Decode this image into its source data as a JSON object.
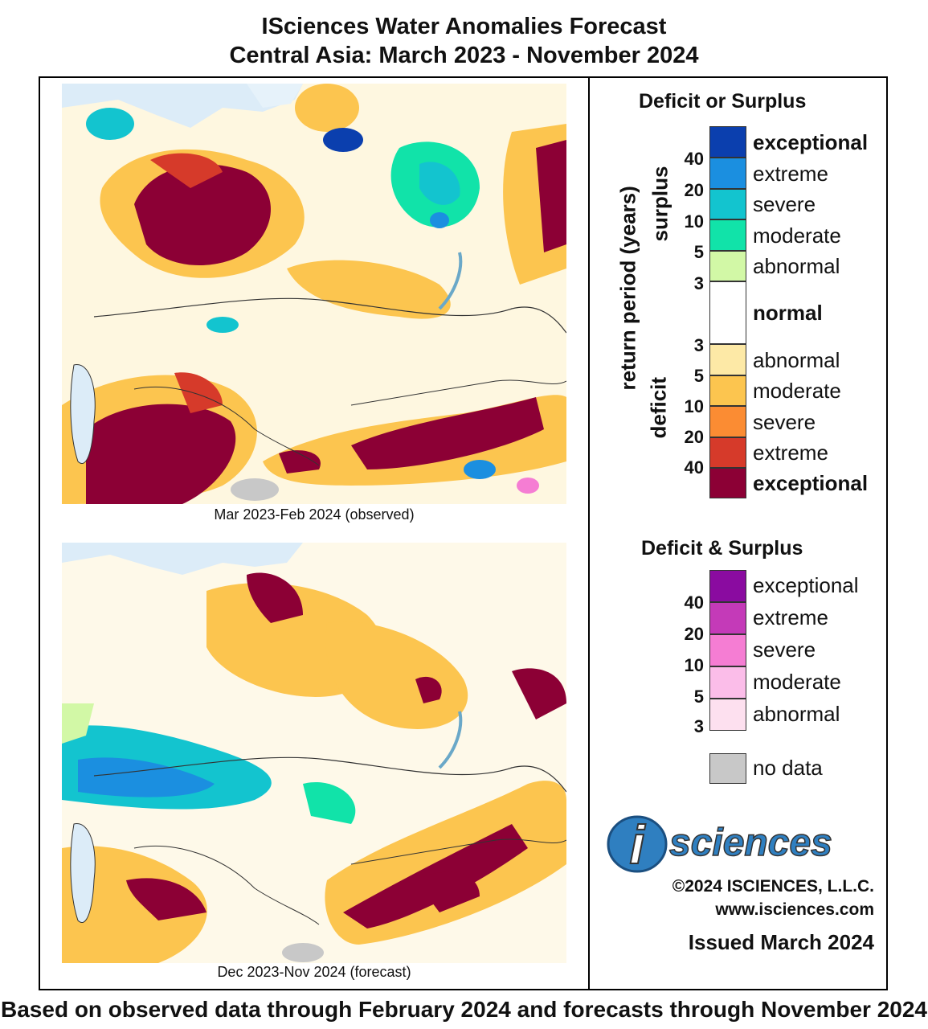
{
  "header": {
    "title_line1": "ISciences Water Anomalies Forecast",
    "title_line2": "Central Asia: March 2023 - November 2024"
  },
  "maps": [
    {
      "caption": "Mar 2023-Feb 2024 (observed)"
    },
    {
      "caption": "Dec 2023-Nov 2024 (forecast)"
    }
  ],
  "legend": {
    "deficit_surplus_title": "Deficit or Surplus",
    "axis_label": "return period (years)",
    "surplus_label": "surplus",
    "deficit_label": "deficit",
    "surplus_numbers": [
      "40",
      "20",
      "10",
      "5",
      "3"
    ],
    "deficit_numbers": [
      "3",
      "5",
      "10",
      "20",
      "40"
    ],
    "classes": [
      {
        "label": "exceptional",
        "color": "#0b3fae"
      },
      {
        "label": "extreme",
        "color": "#1b8fe0"
      },
      {
        "label": "severe",
        "color": "#13c4cf"
      },
      {
        "label": "moderate",
        "color": "#11e3a9"
      },
      {
        "label": "abnormal",
        "color": "#d2f8a6"
      },
      {
        "label": "normal",
        "color": "#ffffff"
      },
      {
        "label": "abnormal",
        "color": "#fde9a6"
      },
      {
        "label": "moderate",
        "color": "#fcc54f"
      },
      {
        "label": "severe",
        "color": "#fb8c33"
      },
      {
        "label": "extreme",
        "color": "#d63a2a"
      },
      {
        "label": "exceptional",
        "color": "#8c0035"
      }
    ],
    "both_title": "Deficit & Surplus",
    "both_numbers": [
      "40",
      "20",
      "10",
      "5",
      "3"
    ],
    "both_classes": [
      {
        "label": "exceptional",
        "color": "#8a0ba0"
      },
      {
        "label": "extreme",
        "color": "#c43ab8"
      },
      {
        "label": "severe",
        "color": "#f57dd3"
      },
      {
        "label": "moderate",
        "color": "#fbbde9"
      },
      {
        "label": "abnormal",
        "color": "#fde0ef"
      }
    ],
    "no_data": {
      "label": "no data",
      "color": "#c8c8c8"
    }
  },
  "branding": {
    "logo_letter": "i",
    "logo_word": "sciences",
    "copyright": "©2024 ISCIENCES, L.L.C.",
    "website": "www.isciences.com",
    "issued": "Issued March 2024"
  },
  "footer": "Based on observed data through February 2024 and forecasts through November 2024"
}
